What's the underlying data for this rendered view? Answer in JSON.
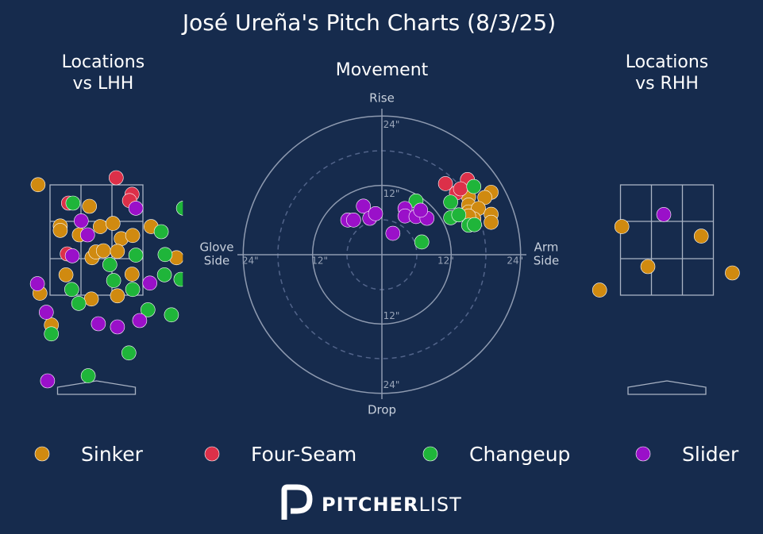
{
  "title": "José Ureña's Pitch Charts (8/3/25)",
  "logo": {
    "bold": "PITCHER",
    "light": "LIST"
  },
  "chart_data": [
    {
      "type": "location",
      "title": [
        "Locations",
        "vs LHH"
      ],
      "xlim": [
        -1.15,
        1.36
      ],
      "ylim": [
        0,
        4.5
      ],
      "series": [
        {
          "name": "Sinker",
          "color": "#d08a10",
          "x": [
            -0.92,
            -0.11,
            -0.57,
            -0.57,
            -0.27,
            0.06,
            0.26,
            0.86,
            0.39,
            0.57,
            -0.07,
            -0.01,
            0.11,
            0.33,
            1.26,
            -0.48,
            0.56,
            -0.08,
            0.33,
            -0.89,
            -0.71
          ],
          "y": [
            3.34,
            3.0,
            2.69,
            2.62,
            2.55,
            2.68,
            2.73,
            2.68,
            2.49,
            2.54,
            2.19,
            2.28,
            2.3,
            2.29,
            2.19,
            1.92,
            1.93,
            1.54,
            1.59,
            1.63,
            1.13
          ]
        },
        {
          "name": "Four-Seam",
          "color": "#dc3049",
          "x": [
            0.31,
            0.56,
            -0.44,
            0.52,
            -0.46
          ],
          "y": [
            3.45,
            3.19,
            3.05,
            3.09,
            2.25
          ]
        },
        {
          "name": "Changeup",
          "color": "#1fb53a",
          "x": [
            -0.37,
            1.37,
            1.02,
            0.62,
            1.08,
            0.21,
            0.27,
            -0.39,
            0.57,
            1.07,
            1.33,
            -0.28,
            0.81,
            1.18,
            -0.71,
            0.51,
            -0.13
          ],
          "y": [
            3.05,
            2.97,
            2.6,
            2.23,
            2.24,
            2.08,
            1.83,
            1.69,
            1.69,
            1.92,
            1.85,
            1.47,
            1.37,
            1.29,
            0.99,
            0.69,
            0.33
          ]
        },
        {
          "name": "Slider",
          "color": "#9a10c9",
          "x": [
            0.62,
            -0.24,
            -0.14,
            -0.38,
            0.84,
            -0.93,
            -0.79,
            0.03,
            0.33,
            0.68,
            -0.77
          ],
          "y": [
            2.97,
            2.77,
            2.55,
            2.22,
            1.79,
            1.78,
            1.33,
            1.15,
            1.1,
            1.2,
            0.25
          ]
        }
      ]
    },
    {
      "type": "movement",
      "title": "Movement",
      "labels": {
        "top": "Rise",
        "bottom": "Drop",
        "left": [
          "Glove",
          "Side"
        ],
        "right": [
          "Arm",
          "Side"
        ]
      },
      "xlim": [
        -25,
        25
      ],
      "ylim": [
        -25,
        25
      ],
      "xticks": [
        {
          "value": -24,
          "label": "24\""
        },
        {
          "value": -12,
          "label": "12\""
        },
        {
          "value": 12,
          "label": "12\""
        },
        {
          "value": 24,
          "label": "24\""
        }
      ],
      "yticks": [
        {
          "value": 24,
          "label": "24\""
        },
        {
          "value": 12,
          "label": "12\""
        },
        {
          "value": -12,
          "label": "12\""
        },
        {
          "value": -24,
          "label": "24\""
        }
      ],
      "series": [
        {
          "name": "Sinker",
          "color": "#d08a10",
          "x": [
            18.9,
            17.8,
            15.0,
            15.0,
            15.0,
            16.7,
            18.9,
            18.9,
            15.9,
            15.0
          ],
          "y": [
            10.8,
            9.9,
            10.0,
            8.6,
            7.4,
            8.0,
            7.0,
            5.6,
            6.2,
            6.7
          ]
        },
        {
          "name": "Four-Seam",
          "color": "#dc3049",
          "x": [
            11.0,
            14.8,
            12.9,
            13.6
          ],
          "y": [
            12.3,
            13.0,
            10.7,
            11.4
          ]
        },
        {
          "name": "Changeup",
          "color": "#1fb53a",
          "x": [
            5.9,
            6.9,
            15.9,
            11.9,
            11.9,
            13.3,
            15.0,
            16.0
          ],
          "y": [
            9.3,
            2.2,
            11.8,
            9.1,
            6.4,
            6.9,
            5.1,
            5.2
          ]
        },
        {
          "name": "Slider",
          "color": "#9a10c9",
          "x": [
            -5.9,
            -4.9,
            -3.2,
            -2.1,
            -1.1,
            1.9,
            4.0,
            4.0,
            5.9,
            7.8,
            6.7
          ],
          "y": [
            6.0,
            6.0,
            8.4,
            6.3,
            7.1,
            3.7,
            8.0,
            6.7,
            6.6,
            6.3,
            7.7
          ]
        }
      ]
    },
    {
      "type": "location",
      "title": [
        "Locations",
        "vs RHH"
      ],
      "xlim": [
        -1.3,
        1.3
      ],
      "ylim": [
        0,
        4.5
      ],
      "series": [
        {
          "name": "Sinker",
          "color": "#d08a10",
          "x": [
            -0.71,
            0.54,
            -0.3,
            1.03,
            -1.06
          ],
          "y": [
            2.68,
            2.53,
            2.05,
            1.95,
            1.68
          ]
        },
        {
          "name": "Four-Seam",
          "color": "#dc3049",
          "x": [],
          "y": []
        },
        {
          "name": "Changeup",
          "color": "#1fb53a",
          "x": [],
          "y": []
        },
        {
          "name": "Slider",
          "color": "#9a10c9",
          "x": [
            -0.05
          ],
          "y": [
            2.87
          ]
        }
      ]
    }
  ]
}
